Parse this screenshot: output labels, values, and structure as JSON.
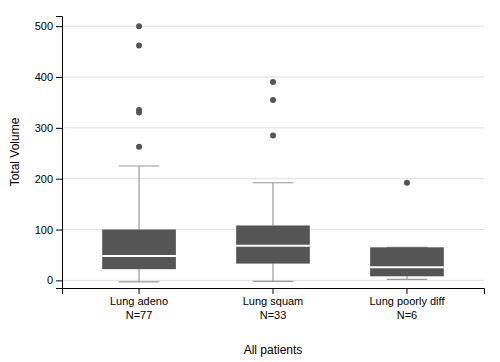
{
  "chart_data": {
    "type": "box",
    "categories": [
      "Lung adeno\nN=77",
      "Lung squam\nN=33",
      "Lung poorly diff\nN=6"
    ],
    "ylabel": "Total Volume",
    "xlabel": "All patients",
    "ylim": [
      -15,
      520
    ],
    "yticks": [
      0,
      100,
      200,
      300,
      400,
      500
    ],
    "grid": true,
    "color": "#555555",
    "boxes": [
      {
        "q1": 22,
        "median": 48,
        "q3": 100,
        "whisker_low": -3,
        "whisker_high": 225,
        "outliers": [
          263,
          330,
          335,
          462,
          500
        ]
      },
      {
        "q1": 33,
        "median": 68,
        "q3": 108,
        "whisker_low": -2,
        "whisker_high": 192,
        "outliers": [
          285,
          355,
          390
        ]
      },
      {
        "q1": 8,
        "median": 26,
        "q3": 65,
        "whisker_low": 2,
        "whisker_high": 65,
        "outliers": [
          192
        ]
      }
    ]
  }
}
